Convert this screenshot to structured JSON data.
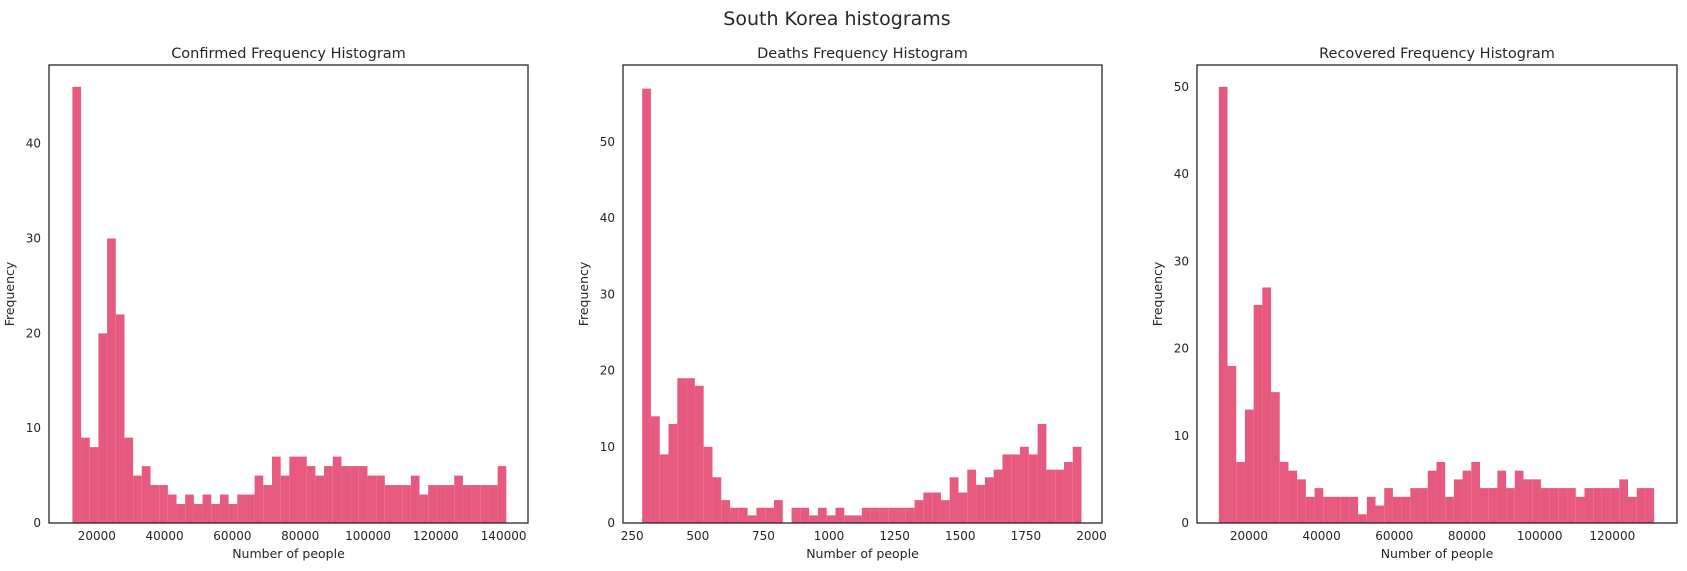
{
  "figure": {
    "suptitle": "South Korea histograms"
  },
  "colors": {
    "bar": "#e75a80",
    "axes": "#262626",
    "background": "#ffffff"
  },
  "chart_data": [
    {
      "type": "bar",
      "title": "Confirmed Frequency Histogram",
      "xlabel": "Number of people",
      "ylabel": "Frequency",
      "xlim": [
        5900,
        147200
      ],
      "ylim": [
        0,
        48.3
      ],
      "xticks": [
        20000,
        40000,
        60000,
        80000,
        100000,
        120000,
        140000
      ],
      "yticks": [
        0,
        10,
        20,
        30,
        40
      ],
      "bin_start": 12800,
      "bin_end": 140800,
      "values": [
        46,
        9,
        8,
        20,
        30,
        22,
        9,
        5,
        6,
        4,
        4,
        3,
        2,
        3,
        2,
        3,
        2,
        3,
        2,
        3,
        3,
        5,
        4,
        7,
        5,
        7,
        7,
        6,
        5,
        6,
        7,
        6,
        6,
        6,
        5,
        5,
        4,
        4,
        4,
        5,
        3,
        4,
        4,
        4,
        5,
        4,
        4,
        4,
        4,
        6
      ]
    },
    {
      "type": "bar",
      "title": "Deaths Frequency Histogram",
      "xlabel": "Number of people",
      "ylabel": "Frequency",
      "xlim": [
        215,
        2040
      ],
      "ylim": [
        0,
        60.1
      ],
      "xticks": [
        250,
        500,
        750,
        1000,
        1250,
        1500,
        1750,
        2000
      ],
      "yticks": [
        0,
        10,
        20,
        30,
        40,
        50
      ],
      "bin_start": 288,
      "bin_end": 1962,
      "values": [
        57,
        14,
        9,
        13,
        19,
        19,
        18,
        10,
        6,
        3,
        2,
        2,
        1,
        2,
        2,
        3,
        0,
        2,
        2,
        1,
        2,
        1,
        2,
        1,
        1,
        2,
        2,
        2,
        2,
        2,
        2,
        3,
        4,
        4,
        3,
        6,
        4,
        7,
        5,
        6,
        7,
        9,
        9,
        10,
        9,
        13,
        7,
        7,
        8,
        10
      ]
    },
    {
      "type": "bar",
      "title": "Recovered Frequency Histogram",
      "xlabel": "Number of people",
      "ylabel": "Frequency",
      "xlim": [
        5700,
        137800
      ],
      "ylim": [
        0,
        52.5
      ],
      "xticks": [
        20000,
        40000,
        60000,
        80000,
        100000,
        120000
      ],
      "yticks": [
        0,
        10,
        20,
        30,
        40,
        50
      ],
      "bin_start": 11700,
      "bin_end": 131500,
      "values": [
        50,
        18,
        7,
        13,
        25,
        27,
        15,
        7,
        6,
        5,
        3,
        4,
        3,
        3,
        3,
        3,
        1,
        3,
        2,
        4,
        3,
        3,
        4,
        4,
        6,
        7,
        3,
        5,
        6,
        7,
        4,
        4,
        6,
        4,
        6,
        5,
        5,
        4,
        4,
        4,
        4,
        3,
        4,
        4,
        4,
        4,
        5,
        3,
        4,
        4
      ]
    }
  ]
}
